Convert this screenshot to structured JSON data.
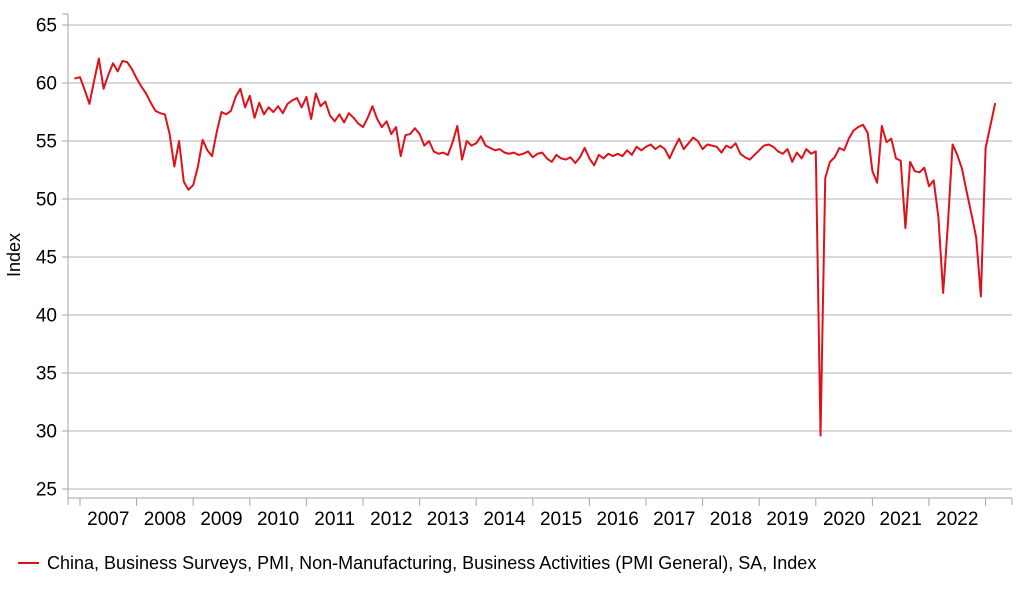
{
  "chart": {
    "ylabel": "Index",
    "legend": {
      "label": "China, Business Surveys, PMI, Non-Manufacturing, Business Activities (PMI General), SA, Index",
      "color": "#e0111a"
    },
    "colors": {
      "line": "#e0111a",
      "gridline": "#b3b3b3",
      "axis": "#a6a6a6",
      "text": "#000000",
      "background": "#ffffff"
    }
  },
  "chart_data": {
    "type": "line",
    "title": "",
    "xlabel": "",
    "ylabel": "Index",
    "legend_position": "bottom-left",
    "grid": "horizontal",
    "ylim": [
      25,
      65
    ],
    "ytick_step": 5,
    "yticks": [
      25,
      30,
      35,
      40,
      45,
      50,
      55,
      60,
      65
    ],
    "x_tick_years": [
      2007,
      2008,
      2009,
      2010,
      2011,
      2012,
      2013,
      2014,
      2015,
      2016,
      2017,
      2018,
      2019,
      2020,
      2021,
      2022
    ],
    "frequency": "monthly",
    "start_month": "2006-12",
    "end_month": "2023-03",
    "series": [
      {
        "name": "China, Business Surveys, PMI, Non-Manufacturing, Business Activities (PMI General), SA, Index",
        "color": "#e0111a",
        "values": [
          60.4,
          60.5,
          59.4,
          58.2,
          60.2,
          62.1,
          59.5,
          60.7,
          61.7,
          61.0,
          61.9,
          61.8,
          61.2,
          60.4,
          59.7,
          59.1,
          58.3,
          57.6,
          57.4,
          57.3,
          55.6,
          52.8,
          55.0,
          51.5,
          50.8,
          51.2,
          52.8,
          55.1,
          54.2,
          53.7,
          55.8,
          57.5,
          57.3,
          57.6,
          58.8,
          59.5,
          57.9,
          58.9,
          57.0,
          58.3,
          57.3,
          57.9,
          57.5,
          58.0,
          57.4,
          58.2,
          58.5,
          58.7,
          57.9,
          58.8,
          56.9,
          59.1,
          58.0,
          58.4,
          57.2,
          56.7,
          57.3,
          56.6,
          57.4,
          57.0,
          56.5,
          56.2,
          57.0,
          58.0,
          56.9,
          56.2,
          56.7,
          55.6,
          56.2,
          53.7,
          55.5,
          55.6,
          56.1,
          55.6,
          54.6,
          55.0,
          54.1,
          53.9,
          54.0,
          53.8,
          54.9,
          56.3,
          53.4,
          55.0,
          54.6,
          54.8,
          55.4,
          54.6,
          54.4,
          54.2,
          54.3,
          54.0,
          53.9,
          54.0,
          53.8,
          53.9,
          54.1,
          53.6,
          53.9,
          54.0,
          53.5,
          53.2,
          53.8,
          53.5,
          53.4,
          53.6,
          53.1,
          53.6,
          54.4,
          53.5,
          52.9,
          53.8,
          53.5,
          53.9,
          53.7,
          53.9,
          53.7,
          54.2,
          53.8,
          54.5,
          54.2,
          54.5,
          54.7,
          54.3,
          54.6,
          54.3,
          53.5,
          54.4,
          55.2,
          54.3,
          54.8,
          55.3,
          55.0,
          54.3,
          54.7,
          54.6,
          54.5,
          54.0,
          54.6,
          54.4,
          54.8,
          53.9,
          53.6,
          53.4,
          53.8,
          54.2,
          54.6,
          54.7,
          54.5,
          54.1,
          53.9,
          54.3,
          53.2,
          54.0,
          53.5,
          54.3,
          53.9,
          54.1,
          29.6,
          51.8,
          53.2,
          53.6,
          54.4,
          54.2,
          55.2,
          55.9,
          56.2,
          56.4,
          55.7,
          52.4,
          51.4,
          56.3,
          54.9,
          55.2,
          53.5,
          53.3,
          47.5,
          53.2,
          52.4,
          52.3,
          52.7,
          51.1,
          51.6,
          48.4,
          41.9,
          47.8,
          54.7,
          53.8,
          52.6,
          50.6,
          48.7,
          46.7,
          41.6,
          54.4,
          56.3,
          58.2
        ]
      }
    ]
  }
}
